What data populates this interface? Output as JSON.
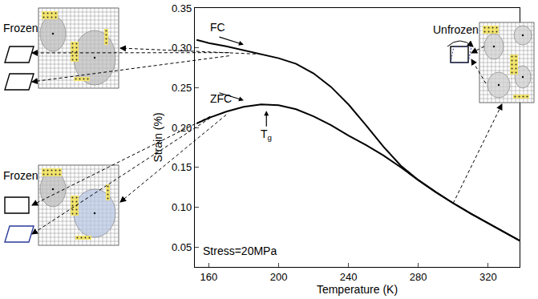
{
  "chart_data": {
    "type": "line",
    "x_label": "Temperature (K)",
    "y_label": "Strain (%)",
    "x": [
      153,
      160,
      170,
      180,
      190,
      200,
      210,
      220,
      230,
      240,
      250,
      260,
      270,
      280,
      290,
      300,
      310,
      320,
      330,
      338
    ],
    "series": [
      {
        "name": "FC",
        "color": "#000000",
        "values": [
          0.31,
          0.306,
          0.302,
          0.297,
          0.292,
          0.287,
          0.28,
          0.268,
          0.251,
          0.229,
          0.203,
          0.176,
          0.152,
          0.134,
          0.119,
          0.105,
          0.092,
          0.08,
          0.068,
          0.058
        ]
      },
      {
        "name": "ZFC",
        "color": "#000000",
        "values": [
          0.205,
          0.212,
          0.22,
          0.226,
          0.229,
          0.228,
          0.223,
          0.214,
          0.203,
          0.19,
          0.178,
          0.165,
          0.15,
          0.134,
          0.119,
          0.105,
          0.092,
          0.08,
          0.068,
          0.058
        ]
      }
    ],
    "xlim": [
      152,
      338
    ],
    "xticks": [
      160,
      200,
      240,
      280,
      320
    ],
    "ylim": [
      0.025,
      0.35
    ],
    "yticks": [
      0.05,
      {
        "value": 0.1,
        "label": "0.10"
      },
      0.15,
      {
        "value": 0.2,
        "label": "0.20"
      },
      0.25,
      {
        "value": 0.3,
        "label": "0.30"
      },
      0.35
    ],
    "grid": false,
    "transition": {
      "text": "T",
      "subscript": "g",
      "x": 193
    },
    "annotations": [
      "Stress=20MPa"
    ],
    "inset_labels": [
      "Frozen",
      "Frozen",
      "Unfrozen"
    ]
  }
}
